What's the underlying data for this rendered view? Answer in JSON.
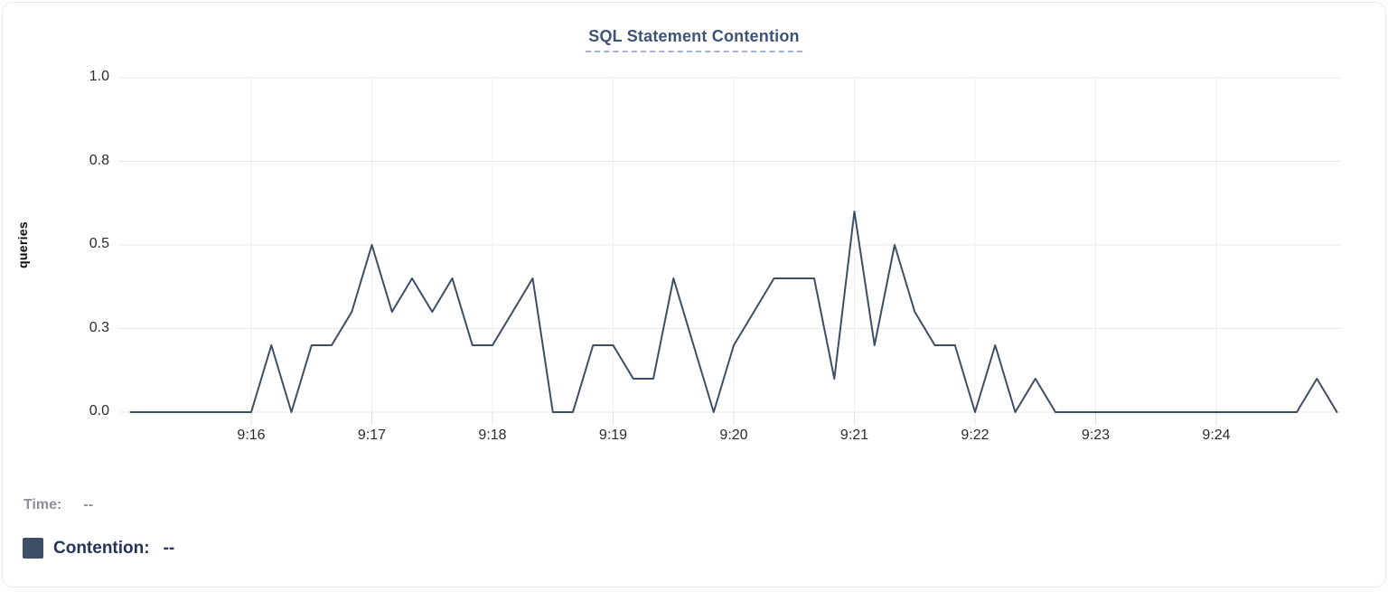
{
  "title": "SQL Statement Contention",
  "colors": {
    "line": "#3e4d66",
    "swatch": "#3f4e67",
    "title_text": "#3e5377",
    "title_underline": "#a7afd8",
    "grid_horizontal": "#e8e9eb",
    "grid_vertical": "#ededef",
    "axis_tick_stub": "#e0e1e4",
    "tick_text": "#2c2c2e",
    "legend_muted": "#8b909b",
    "legend_navy": "#263459"
  },
  "chart_data": {
    "type": "line",
    "title": "SQL Statement Contention",
    "xlabel": "",
    "ylabel": "queries",
    "series_name": "Contention",
    "start_time": "9:15:00",
    "end_time": "9:25:00",
    "interval_seconds": 10,
    "values": [
      0,
      0,
      0,
      0,
      0,
      0,
      0,
      0.2,
      0,
      0.2,
      0.2,
      0.3,
      0.5,
      0.3,
      0.4,
      0.3,
      0.4,
      0.2,
      0.2,
      0.3,
      0.4,
      0,
      0,
      0.2,
      0.2,
      0.1,
      0.1,
      0.4,
      0.2,
      0,
      0.2,
      0.3,
      0.4,
      0.4,
      0.4,
      0.1,
      0.6,
      0.2,
      0.5,
      0.3,
      0.2,
      0.2,
      0,
      0.2,
      0,
      0.1,
      0,
      0,
      0,
      0,
      0,
      0,
      0,
      0,
      0,
      0,
      0,
      0,
      0,
      0.1,
      0
    ],
    "x_tick_labels": [
      "9:16",
      "9:17",
      "9:18",
      "9:19",
      "9:20",
      "9:21",
      "9:22",
      "9:23",
      "9:24"
    ],
    "x_tick_minutes": [
      1,
      2,
      3,
      4,
      5,
      6,
      7,
      8,
      9
    ],
    "total_minutes": 10,
    "y_tick_values": [
      0,
      0.25,
      0.5,
      0.75,
      1
    ],
    "y_tick_labels": [
      "0.0",
      "0.3",
      "0.5",
      "0.8",
      "1.0"
    ],
    "ylim": [
      0,
      1
    ],
    "grid": true,
    "legend_position": "bottom-left"
  },
  "tooltip": {
    "time_label": "Time:",
    "time_value": "--",
    "series_label": "Contention:",
    "series_value": "--"
  }
}
